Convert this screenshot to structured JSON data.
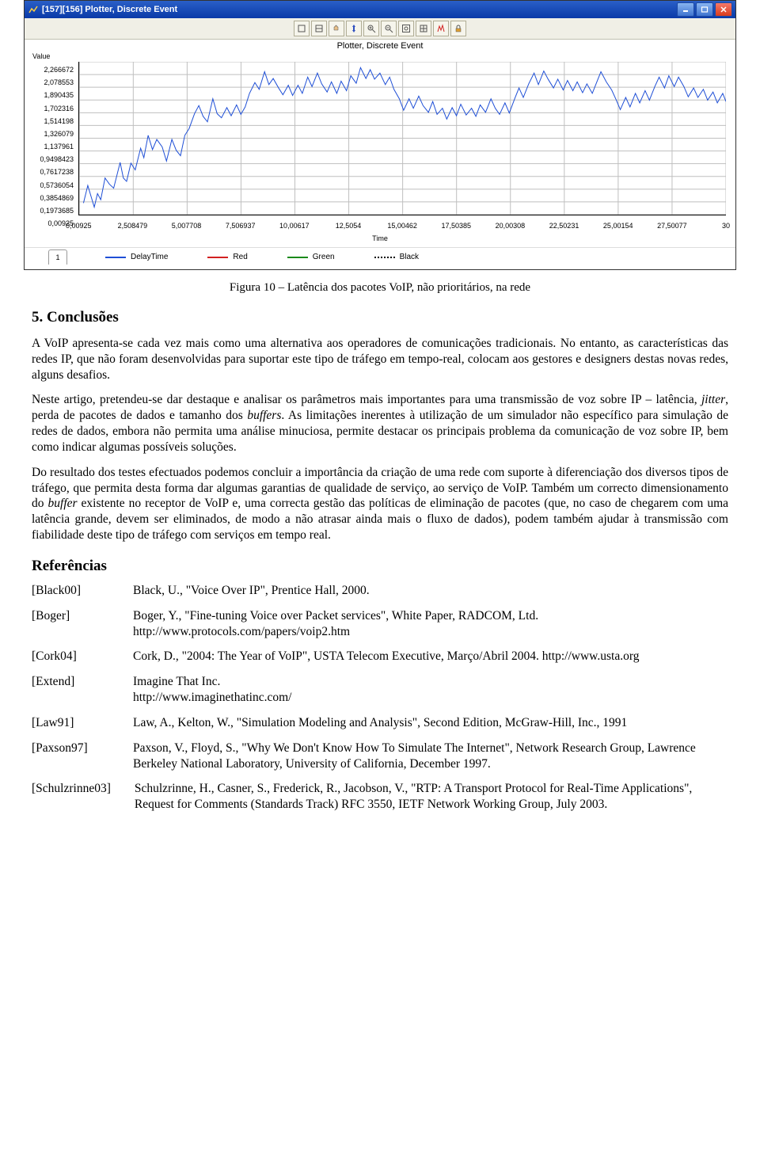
{
  "window": {
    "title": "[157][156] Plotter, Discrete Event",
    "buttons": {
      "minimize": "_",
      "maximize": "❐",
      "close": "✕"
    }
  },
  "plot": {
    "type": "line",
    "chart_title": "Plotter, Discrete Event",
    "yaxis_label": "Value",
    "xaxis_label": "Time",
    "background_color": "#ffffff",
    "grid_color": "#bfbfbf",
    "line_color_delay": "#1f4fd6",
    "line_width": 1,
    "xlim": [
      0,
      30
    ],
    "ylim": [
      0.00925,
      2.266672
    ],
    "x_ticks": [
      {
        "v": 0.00925,
        "label": "0,00925"
      },
      {
        "v": 2.508479,
        "label": "2,508479"
      },
      {
        "v": 5.007708,
        "label": "5,007708"
      },
      {
        "v": 7.506937,
        "label": "7,506937"
      },
      {
        "v": 10.00617,
        "label": "10,00617"
      },
      {
        "v": 12.5054,
        "label": "12,5054"
      },
      {
        "v": 15.00462,
        "label": "15,00462"
      },
      {
        "v": 17.50385,
        "label": "17,50385"
      },
      {
        "v": 20.00308,
        "label": "20,00308"
      },
      {
        "v": 22.50231,
        "label": "22,50231"
      },
      {
        "v": 25.00154,
        "label": "25,00154"
      },
      {
        "v": 27.50077,
        "label": "27,50077"
      },
      {
        "v": 30,
        "label": "30"
      }
    ],
    "y_ticks": [
      {
        "v": 2.266672,
        "label": "2,266672"
      },
      {
        "v": 2.078553,
        "label": "2,078553"
      },
      {
        "v": 1.890435,
        "label": "1,890435"
      },
      {
        "v": 1.702316,
        "label": "1,702316"
      },
      {
        "v": 1.514198,
        "label": "1,514198"
      },
      {
        "v": 1.326079,
        "label": "1,326079"
      },
      {
        "v": 1.137961,
        "label": "1,137961"
      },
      {
        "v": 0.9498423,
        "label": "0,9498423"
      },
      {
        "v": 0.7617238,
        "label": "0,7617238"
      },
      {
        "v": 0.5736054,
        "label": "0,5736054"
      },
      {
        "v": 0.3854869,
        "label": "0,3854869"
      },
      {
        "v": 0.1973685,
        "label": "0,1973685"
      },
      {
        "v": 0.00925,
        "label": "0,00925"
      }
    ],
    "series_delaytime": [
      [
        0.2,
        0.18
      ],
      [
        0.4,
        0.44
      ],
      [
        0.55,
        0.28
      ],
      [
        0.7,
        0.12
      ],
      [
        0.85,
        0.32
      ],
      [
        1.0,
        0.23
      ],
      [
        1.2,
        0.55
      ],
      [
        1.4,
        0.46
      ],
      [
        1.6,
        0.4
      ],
      [
        1.9,
        0.78
      ],
      [
        2.05,
        0.55
      ],
      [
        2.2,
        0.5
      ],
      [
        2.4,
        0.77
      ],
      [
        2.6,
        0.67
      ],
      [
        2.85,
        0.99
      ],
      [
        3.0,
        0.85
      ],
      [
        3.2,
        1.18
      ],
      [
        3.4,
        0.97
      ],
      [
        3.6,
        1.12
      ],
      [
        3.85,
        1.01
      ],
      [
        4.05,
        0.8
      ],
      [
        4.3,
        1.12
      ],
      [
        4.5,
        0.96
      ],
      [
        4.7,
        0.88
      ],
      [
        4.9,
        1.18
      ],
      [
        5.1,
        1.28
      ],
      [
        5.35,
        1.5
      ],
      [
        5.55,
        1.62
      ],
      [
        5.75,
        1.46
      ],
      [
        5.95,
        1.38
      ],
      [
        6.2,
        1.72
      ],
      [
        6.4,
        1.5
      ],
      [
        6.6,
        1.44
      ],
      [
        6.85,
        1.59
      ],
      [
        7.05,
        1.47
      ],
      [
        7.3,
        1.63
      ],
      [
        7.5,
        1.49
      ],
      [
        7.7,
        1.6
      ],
      [
        7.9,
        1.8
      ],
      [
        8.15,
        1.96
      ],
      [
        8.35,
        1.86
      ],
      [
        8.6,
        2.12
      ],
      [
        8.8,
        1.93
      ],
      [
        9.0,
        2.02
      ],
      [
        9.25,
        1.88
      ],
      [
        9.45,
        1.78
      ],
      [
        9.7,
        1.92
      ],
      [
        9.9,
        1.77
      ],
      [
        10.15,
        1.92
      ],
      [
        10.35,
        1.8
      ],
      [
        10.6,
        2.04
      ],
      [
        10.8,
        1.9
      ],
      [
        11.05,
        2.1
      ],
      [
        11.25,
        1.94
      ],
      [
        11.5,
        1.82
      ],
      [
        11.7,
        1.97
      ],
      [
        11.95,
        1.8
      ],
      [
        12.15,
        1.98
      ],
      [
        12.4,
        1.84
      ],
      [
        12.6,
        2.06
      ],
      [
        12.85,
        1.95
      ],
      [
        13.05,
        2.18
      ],
      [
        13.3,
        2.02
      ],
      [
        13.5,
        2.15
      ],
      [
        13.7,
        2.01
      ],
      [
        13.95,
        2.1
      ],
      [
        14.2,
        1.93
      ],
      [
        14.4,
        2.04
      ],
      [
        14.6,
        1.86
      ],
      [
        14.85,
        1.72
      ],
      [
        15.05,
        1.55
      ],
      [
        15.3,
        1.72
      ],
      [
        15.5,
        1.58
      ],
      [
        15.75,
        1.76
      ],
      [
        15.95,
        1.62
      ],
      [
        16.2,
        1.52
      ],
      [
        16.4,
        1.68
      ],
      [
        16.6,
        1.49
      ],
      [
        16.85,
        1.58
      ],
      [
        17.05,
        1.42
      ],
      [
        17.3,
        1.59
      ],
      [
        17.5,
        1.47
      ],
      [
        17.7,
        1.64
      ],
      [
        17.95,
        1.48
      ],
      [
        18.2,
        1.58
      ],
      [
        18.4,
        1.46
      ],
      [
        18.6,
        1.63
      ],
      [
        18.85,
        1.52
      ],
      [
        19.1,
        1.72
      ],
      [
        19.3,
        1.58
      ],
      [
        19.5,
        1.49
      ],
      [
        19.75,
        1.66
      ],
      [
        19.95,
        1.51
      ],
      [
        20.2,
        1.72
      ],
      [
        20.4,
        1.88
      ],
      [
        20.6,
        1.74
      ],
      [
        20.85,
        1.94
      ],
      [
        21.1,
        2.1
      ],
      [
        21.3,
        1.93
      ],
      [
        21.55,
        2.13
      ],
      [
        21.75,
        2.01
      ],
      [
        22.0,
        1.88
      ],
      [
        22.2,
        2.01
      ],
      [
        22.45,
        1.85
      ],
      [
        22.65,
        1.99
      ],
      [
        22.9,
        1.84
      ],
      [
        23.1,
        1.97
      ],
      [
        23.35,
        1.81
      ],
      [
        23.55,
        1.94
      ],
      [
        23.8,
        1.8
      ],
      [
        24.0,
        1.96
      ],
      [
        24.2,
        2.12
      ],
      [
        24.45,
        1.97
      ],
      [
        24.7,
        1.85
      ],
      [
        24.9,
        1.71
      ],
      [
        25.1,
        1.56
      ],
      [
        25.35,
        1.74
      ],
      [
        25.55,
        1.6
      ],
      [
        25.8,
        1.8
      ],
      [
        26.0,
        1.66
      ],
      [
        26.25,
        1.84
      ],
      [
        26.45,
        1.7
      ],
      [
        26.7,
        1.9
      ],
      [
        26.9,
        2.04
      ],
      [
        27.15,
        1.88
      ],
      [
        27.35,
        2.06
      ],
      [
        27.6,
        1.9
      ],
      [
        27.8,
        2.04
      ],
      [
        28.05,
        1.9
      ],
      [
        28.25,
        1.75
      ],
      [
        28.5,
        1.88
      ],
      [
        28.7,
        1.74
      ],
      [
        28.95,
        1.86
      ],
      [
        29.15,
        1.7
      ],
      [
        29.4,
        1.82
      ],
      [
        29.6,
        1.66
      ],
      [
        29.85,
        1.8
      ],
      [
        30.0,
        1.68
      ]
    ],
    "legend": [
      {
        "label": "DelayTime",
        "color": "#1f4fd6",
        "style": "solid"
      },
      {
        "label": "Red",
        "color": "#d22020",
        "style": "solid"
      },
      {
        "label": "Green",
        "color": "#1a8a1a",
        "style": "solid"
      },
      {
        "label": "Black",
        "color": "#000000",
        "style": "dotted"
      }
    ],
    "tab_label": "1"
  },
  "paper": {
    "caption": "Figura 10 – Latência dos pacotes VoIP, não prioritários, na rede",
    "section_heading": "5. Conclusões",
    "p1": "A VoIP apresenta-se cada vez mais como uma alternativa aos operadores de comunicações tradicionais. No entanto, as características das redes IP, que não foram desenvolvidas para suportar este tipo de tráfego em tempo-real, colocam aos gestores e designers destas novas redes, alguns desafios.",
    "p2_before_i1": "Neste artigo, pretendeu-se dar destaque e analisar os parâmetros mais importantes para uma transmissão de voz sobre IP – latência, ",
    "p2_i1": "jitter",
    "p2_mid": ", perda de pacotes de dados e tamanho dos ",
    "p2_i2": "buffers",
    "p2_after_i2": ". As limitações inerentes à utilização de um simulador não específico para simulação de redes de dados, embora não permita uma análise minuciosa, permite destacar os principais problema da comunicação de voz sobre IP, bem como indicar algumas possíveis soluções.",
    "p3_before_i": "Do resultado dos testes efectuados podemos concluir a importância da criação de uma rede com suporte à diferenciação dos diversos tipos de tráfego, que permita desta forma dar algumas garantias de qualidade de serviço, ao serviço de VoIP. Também um correcto dimensionamento do ",
    "p3_i": "buffer",
    "p3_after_i": " existente no receptor de VoIP e, uma correcta gestão das políticas de eliminação de pacotes (que, no caso de chegarem com uma latência grande, devem ser eliminados, de modo a não atrasar ainda mais o fluxo de dados), podem também ajudar à transmissão com fiabilidade deste tipo de tráfego com serviços em tempo real.",
    "refs_heading": "Referências",
    "refs": [
      {
        "key": "[Black00]",
        "text": "Black, U., \"Voice Over IP\", Prentice Hall, 2000."
      },
      {
        "key": "[Boger]",
        "text": "Boger, Y., \"Fine-tuning Voice over Packet services\", White Paper, RADCOM, Ltd. http://www.protocols.com/papers/voip2.htm"
      },
      {
        "key": "[Cork04]",
        "text": "Cork, D., \"2004: The Year of VoIP\", USTA Telecom Executive, Março/Abril 2004. http://www.usta.org"
      },
      {
        "key": "[Extend]",
        "text": "Imagine That Inc.\nhttp://www.imaginethatinc.com/"
      },
      {
        "key": "[Law91]",
        "text": "Law, A., Kelton, W., \"Simulation Modeling and Analysis\", Second Edition, McGraw-Hill, Inc., 1991"
      },
      {
        "key": "[Paxson97]",
        "text": "Paxson, V., Floyd, S., \"Why We Don't Know How To Simulate The Internet\", Network Research Group, Lawrence Berkeley National Laboratory, University of California, December 1997."
      }
    ],
    "ref_wide": {
      "key": "[Schulzrinne03]",
      "text": "Schulzrinne, H., Casner, S., Frederick, R., Jacobson, V., \"RTP: A Transport Protocol for Real-Time Applications\", Request for Comments (Standards Track) RFC 3550, IETF Network Working Group, July 2003."
    }
  }
}
